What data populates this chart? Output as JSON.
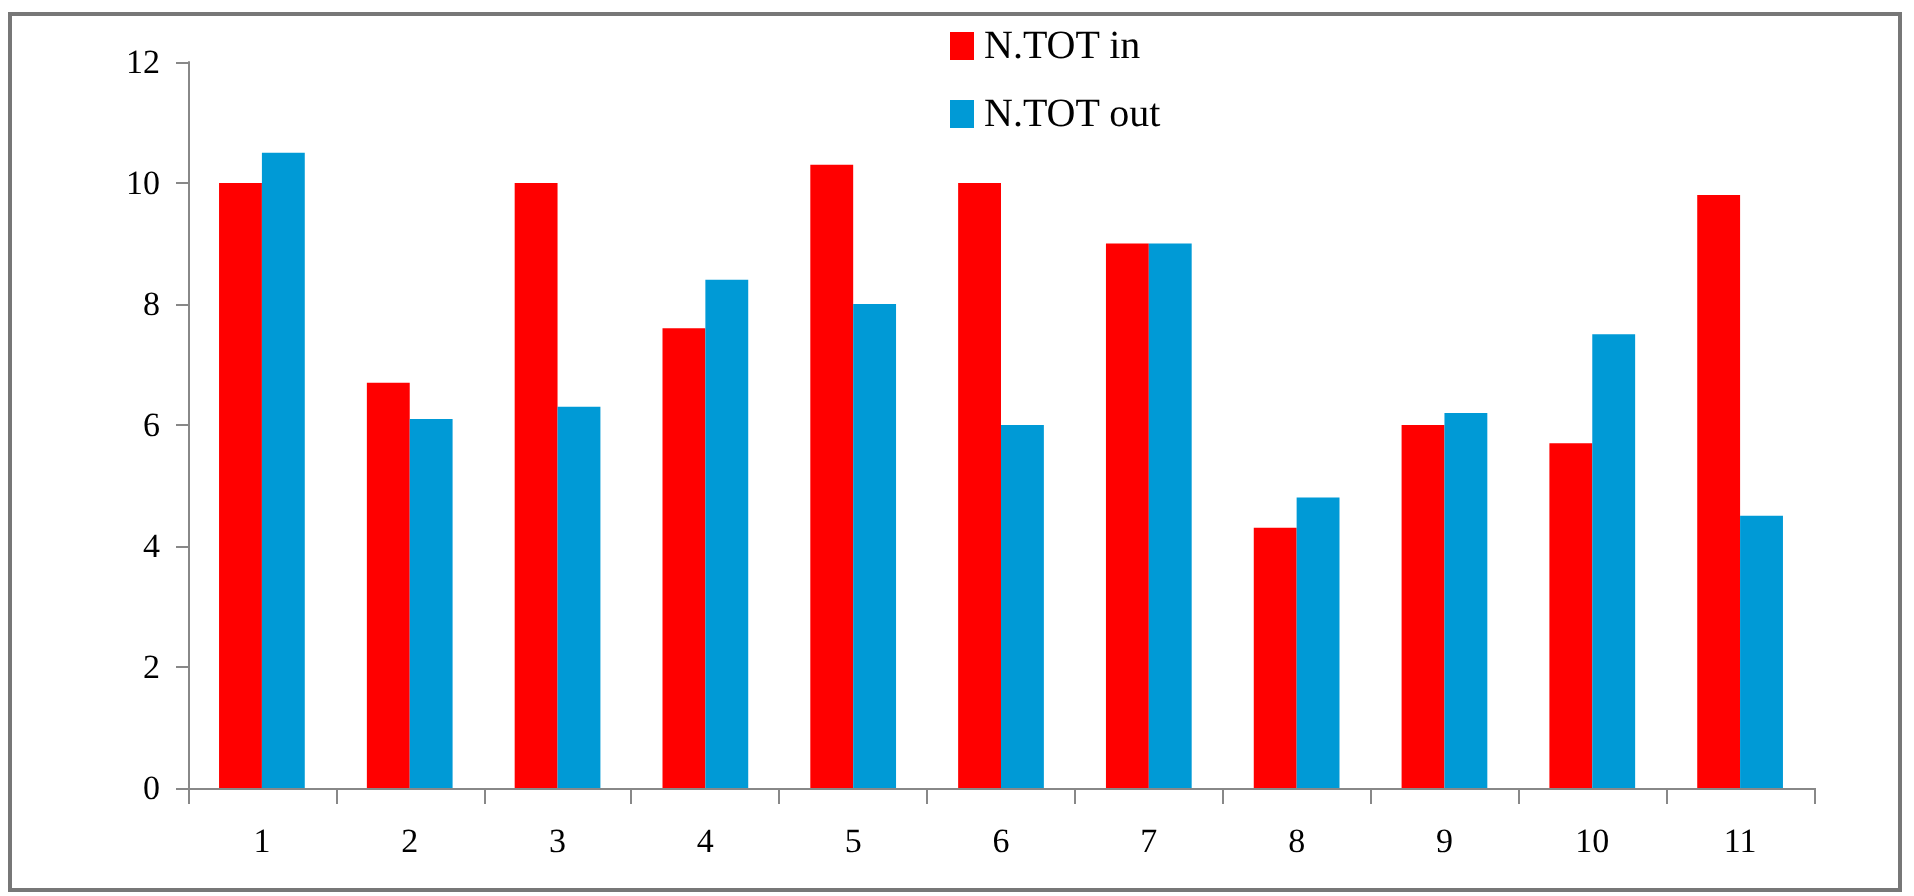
{
  "chart_data": {
    "type": "bar",
    "categories": [
      "1",
      "2",
      "3",
      "4",
      "5",
      "6",
      "7",
      "8",
      "9",
      "10",
      "11"
    ],
    "series": [
      {
        "name": "N.TOT in",
        "color": "#ff0000",
        "values": [
          10,
          6.7,
          10,
          7.6,
          10.3,
          10,
          9.0,
          4.3,
          6.0,
          5.7,
          9.8
        ]
      },
      {
        "name": "N.TOT out",
        "color": "#009ad6",
        "values": [
          10.5,
          6.1,
          6.3,
          8.4,
          8.0,
          6.0,
          9.0,
          4.8,
          6.2,
          7.5,
          4.5
        ]
      }
    ],
    "ylim": [
      0,
      12
    ],
    "yticks": [
      0,
      2,
      4,
      6,
      8,
      10,
      12
    ],
    "grid": false,
    "legend": "top"
  }
}
